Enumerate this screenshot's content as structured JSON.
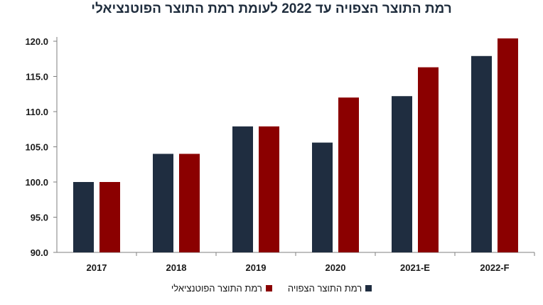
{
  "chart_data": {
    "type": "bar",
    "title": "רמת התוצר הצפויה עד 2022 לעומת רמת התוצר הפוטנציאלי",
    "xlabel": "",
    "ylabel": "",
    "categories": [
      "2017",
      "2018",
      "2019",
      "2020",
      "2021-E",
      "2022-F"
    ],
    "series": [
      {
        "name": "רמת התוצר הצפויה",
        "color": "#1f2d40",
        "values": [
          100.0,
          104.0,
          107.9,
          105.6,
          112.2,
          117.9
        ]
      },
      {
        "name": "רמת התוצר הפוטנציאלי",
        "color": "#8b0000",
        "values": [
          100.0,
          104.0,
          107.9,
          112.0,
          116.3,
          120.4
        ]
      }
    ],
    "ylim": [
      90.0,
      120.0
    ],
    "yticks": [
      "90.0",
      "95.0",
      "100.0",
      "105.0",
      "110.0",
      "115.0",
      "120.0"
    ],
    "grid": false,
    "legend_position": "bottom"
  }
}
